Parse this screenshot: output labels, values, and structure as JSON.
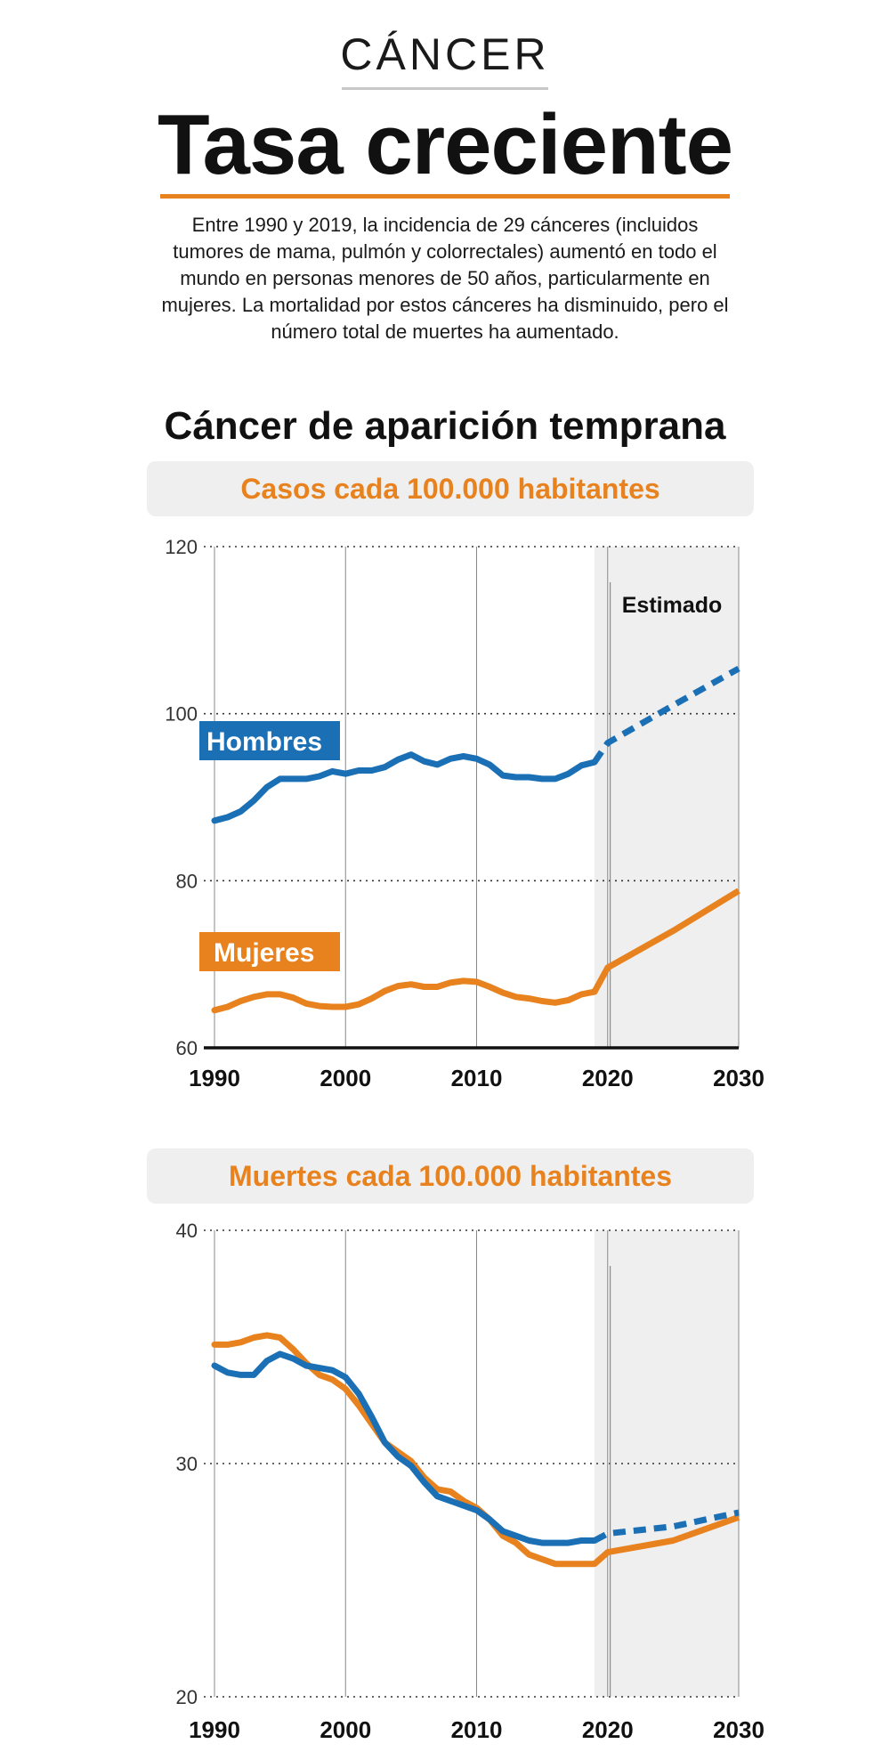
{
  "header": {
    "kicker": "CÁNCER",
    "headline": "Tasa creciente",
    "intro": "Entre 1990 y 2019, la incidencia de 29 cánceres (incluidos tumores de mama, pulmón y colorrectales) aumentó en todo el mundo en personas menores de 50 años, particularmente en mujeres. La mortalidad por estos cánceres ha disminuido, pero el número total de muertes ha aumentado."
  },
  "section_title": "Cáncer de aparición temprana",
  "colors": {
    "hombres": "#1a6fb5",
    "mujeres": "#e8821e",
    "estimado_band": "#efefef"
  },
  "chart_data": [
    {
      "type": "line",
      "title": "Casos cada 100.000 habitantes",
      "x_ticks": [
        1990,
        2000,
        2010,
        2020,
        2030
      ],
      "y_ticks": [
        60,
        80,
        100,
        120
      ],
      "xlim": [
        1990,
        2030
      ],
      "ylim": [
        60,
        120
      ],
      "estimated_from": 2019,
      "estimated_label": "Estimado",
      "grid": "horizontal dotted",
      "series": [
        {
          "name": "Hombres",
          "color": "#1a6fb5",
          "x": [
            1990,
            1991,
            1992,
            1993,
            1994,
            1995,
            1996,
            1997,
            1998,
            1999,
            2000,
            2001,
            2002,
            2003,
            2004,
            2005,
            2006,
            2007,
            2008,
            2009,
            2010,
            2011,
            2012,
            2013,
            2014,
            2015,
            2016,
            2017,
            2018,
            2019
          ],
          "values": [
            87.2,
            87.6,
            88.3,
            89.6,
            91.2,
            92.2,
            92.2,
            92.2,
            92.5,
            93.1,
            92.8,
            93.2,
            93.2,
            93.6,
            94.5,
            95.1,
            94.3,
            93.9,
            94.6,
            94.9,
            94.6,
            93.9,
            92.6,
            92.4,
            92.4,
            92.2,
            92.2,
            92.8,
            93.8,
            94.2
          ],
          "estimated_x": [
            2019,
            2020,
            2025,
            2030
          ],
          "estimated_values": [
            94.2,
            96.5,
            101.0,
            105.4
          ]
        },
        {
          "name": "Mujeres",
          "color": "#e8821e",
          "x": [
            1990,
            1991,
            1992,
            1993,
            1994,
            1995,
            1996,
            1997,
            1998,
            1999,
            2000,
            2001,
            2002,
            2003,
            2004,
            2005,
            2006,
            2007,
            2008,
            2009,
            2010,
            2011,
            2012,
            2013,
            2014,
            2015,
            2016,
            2017,
            2018,
            2019
          ],
          "values": [
            64.5,
            64.9,
            65.6,
            66.1,
            66.4,
            66.4,
            66.0,
            65.3,
            65.0,
            64.9,
            64.9,
            65.2,
            65.9,
            66.8,
            67.4,
            67.6,
            67.3,
            67.3,
            67.8,
            68.0,
            67.9,
            67.3,
            66.6,
            66.1,
            65.9,
            65.6,
            65.4,
            65.7,
            66.4,
            66.7
          ],
          "estimated_x": [
            2019,
            2020,
            2025,
            2030
          ],
          "estimated_values": [
            66.7,
            69.6,
            74.0,
            78.8
          ]
        }
      ]
    },
    {
      "type": "line",
      "title": "Muertes cada 100.000 habitantes",
      "x_ticks": [
        1990,
        2000,
        2010,
        2020,
        2030
      ],
      "y_ticks": [
        20,
        30,
        40
      ],
      "xlim": [
        1990,
        2030
      ],
      "ylim": [
        20,
        40
      ],
      "estimated_from": 2019,
      "grid": "horizontal dotted",
      "series": [
        {
          "name": "Hombres",
          "color": "#1a6fb5",
          "x": [
            1990,
            1991,
            1992,
            1993,
            1994,
            1995,
            1996,
            1997,
            1998,
            1999,
            2000,
            2001,
            2002,
            2003,
            2004,
            2005,
            2006,
            2007,
            2008,
            2009,
            2010,
            2011,
            2012,
            2013,
            2014,
            2015,
            2016,
            2017,
            2018,
            2019
          ],
          "values": [
            34.2,
            33.9,
            33.8,
            33.8,
            34.4,
            34.7,
            34.5,
            34.2,
            34.1,
            34.0,
            33.7,
            33.0,
            32.0,
            30.9,
            30.3,
            29.9,
            29.2,
            28.6,
            28.4,
            28.2,
            28.0,
            27.6,
            27.1,
            26.9,
            26.7,
            26.6,
            26.6,
            26.6,
            26.7,
            26.7
          ],
          "estimated_x": [
            2019,
            2020,
            2025,
            2030
          ],
          "estimated_values": [
            26.7,
            27.0,
            27.3,
            27.9
          ]
        },
        {
          "name": "Mujeres",
          "color": "#e8821e",
          "x": [
            1990,
            1991,
            1992,
            1993,
            1994,
            1995,
            1996,
            1997,
            1998,
            1999,
            2000,
            2001,
            2002,
            2003,
            2004,
            2005,
            2006,
            2007,
            2008,
            2009,
            2010,
            2011,
            2012,
            2013,
            2014,
            2015,
            2016,
            2017,
            2018,
            2019
          ],
          "values": [
            35.1,
            35.1,
            35.2,
            35.4,
            35.5,
            35.4,
            34.9,
            34.3,
            33.8,
            33.6,
            33.2,
            32.5,
            31.7,
            30.9,
            30.5,
            30.1,
            29.4,
            28.9,
            28.8,
            28.4,
            28.1,
            27.6,
            26.9,
            26.6,
            26.1,
            25.9,
            25.7,
            25.7,
            25.7,
            25.7
          ],
          "estimated_x": [
            2019,
            2020,
            2025,
            2030
          ],
          "estimated_values": [
            25.7,
            26.2,
            26.7,
            27.7
          ]
        }
      ]
    }
  ]
}
